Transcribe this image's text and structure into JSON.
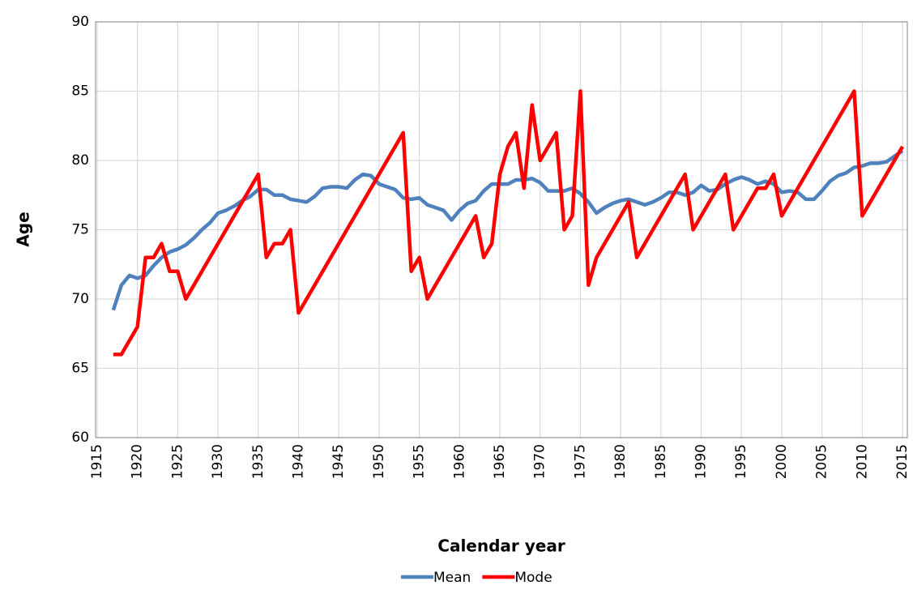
{
  "chart_data": {
    "type": "line",
    "x_label": "Calendar year",
    "y_label": "Age",
    "xlim": [
      1914.8,
      2015.6
    ],
    "xticks": [
      1915,
      1920,
      1925,
      1930,
      1935,
      1940,
      1945,
      1950,
      1955,
      1960,
      1965,
      1970,
      1975,
      1980,
      1985,
      1990,
      1995,
      2000,
      2005,
      2010,
      2015
    ],
    "ylim": [
      60,
      90
    ],
    "yticks": [
      60,
      65,
      70,
      75,
      80,
      85,
      90
    ],
    "grid": true,
    "series": [
      {
        "name": "Mean",
        "color": "#4f81bd",
        "x": [
          1917,
          1918,
          1919,
          1920,
          1921,
          1922,
          1923,
          1924,
          1925,
          1926,
          1927,
          1928,
          1929,
          1930,
          1931,
          1932,
          1933,
          1934,
          1935,
          1936,
          1937,
          1938,
          1939,
          1940,
          1941,
          1942,
          1943,
          1944,
          1945,
          1946,
          1947,
          1948,
          1949,
          1950,
          1951,
          1952,
          1953,
          1954,
          1955,
          1956,
          1957,
          1958,
          1959,
          1960,
          1961,
          1962,
          1963,
          1964,
          1965,
          1966,
          1967,
          1968,
          1969,
          1970,
          1971,
          1972,
          1973,
          1974,
          1975,
          1976,
          1977,
          1978,
          1979,
          1980,
          1981,
          1982,
          1983,
          1984,
          1985,
          1986,
          1987,
          1988,
          1989,
          1990,
          1991,
          1992,
          1993,
          1994,
          1995,
          1996,
          1997,
          1998,
          1999,
          2000,
          2001,
          2002,
          2003,
          2004,
          2005,
          2006,
          2007,
          2008,
          2009,
          2010,
          2011,
          2012,
          2013,
          2014,
          2015
        ],
        "values": [
          69.2,
          71,
          71.7,
          71.5,
          71.7,
          72.4,
          73,
          73.4,
          73.6,
          73.9,
          74.4,
          75,
          75.5,
          76.2,
          76.4,
          76.7,
          77.1,
          77.4,
          77.9,
          77.9,
          77.5,
          77.5,
          77.2,
          77.1,
          77,
          77.4,
          78,
          78.1,
          78.1,
          78,
          78.6,
          79,
          78.9,
          78.3,
          78.1,
          77.9,
          77.3,
          77.2,
          77.3,
          76.8,
          76.6,
          76.4,
          75.7,
          76.4,
          76.9,
          77.1,
          77.8,
          78.3,
          78.3,
          78.3,
          78.6,
          78.6,
          78.7,
          78.4,
          77.8,
          77.8,
          77.8,
          78,
          77.6,
          77,
          76.2,
          76.6,
          76.9,
          77.1,
          77.2,
          77,
          76.8,
          77,
          77.3,
          77.7,
          77.7,
          77.5,
          77.7,
          78.2,
          77.8,
          77.9,
          78.3,
          78.6,
          78.8,
          78.6,
          78.3,
          78.5,
          78.3,
          77.7,
          77.8,
          77.7,
          77.2,
          77.2,
          77.8,
          78.5,
          78.9,
          79.1,
          79.5,
          79.6,
          79.8,
          79.8,
          79.9,
          80.3,
          80.7
        ]
      },
      {
        "name": "Mode",
        "color": "#ff0000",
        "x": [
          1917,
          1918,
          1920,
          1921,
          1922,
          1923,
          1924,
          1925,
          1926,
          1935,
          1936,
          1937,
          1938,
          1939,
          1940,
          1953,
          1954,
          1955,
          1956,
          1962,
          1963,
          1964,
          1965,
          1966,
          1967,
          1968,
          1969,
          1970,
          1972,
          1973,
          1974,
          1975,
          1976,
          1977,
          1981,
          1982,
          1988,
          1989,
          1993,
          1994,
          1997,
          1998,
          1999,
          2000,
          2009,
          2010,
          2015
        ],
        "values": [
          66,
          66,
          68,
          73,
          73,
          74,
          72,
          72,
          70,
          79,
          73,
          74,
          74,
          75,
          69,
          82,
          72,
          73,
          70,
          76,
          73,
          74,
          79,
          81,
          82,
          78,
          84,
          80,
          82,
          75,
          76,
          85,
          71,
          73,
          77,
          73,
          79,
          75,
          79,
          75,
          78,
          78,
          79,
          76,
          85,
          76,
          81
        ]
      }
    ]
  }
}
